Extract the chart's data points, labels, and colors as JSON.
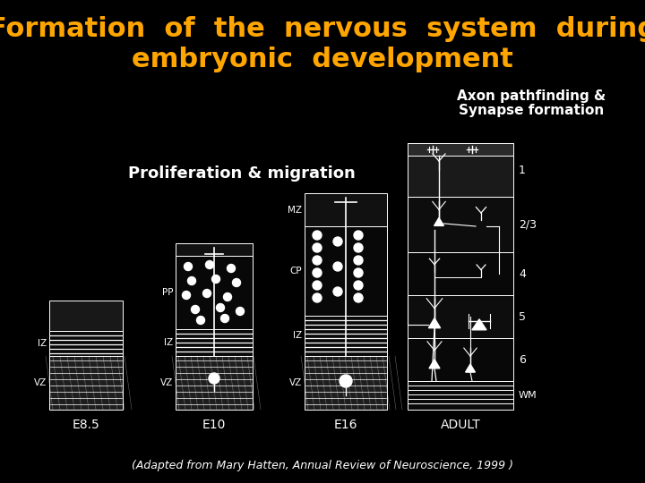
{
  "background_color": "#000000",
  "title_line1": "Formation  of  the  nervous  system  during",
  "title_line2": "embryonic  development",
  "title_color": "#FFA500",
  "title_fontsize": 22,
  "subtitle1": "Axon pathfinding &",
  "subtitle2": "Synapse formation",
  "subtitle_color": "#FFFFFF",
  "subtitle_fontsize": 11,
  "label_prolif": "Proliferation & migration",
  "label_prolif_color": "#FFFFFF",
  "label_prolif_fontsize": 13,
  "footer": "(Adapted from Mary Hatten, Annual Review of Neuroscience, 1999 )",
  "footer_color": "#FFFFFF",
  "footer_fontsize": 9,
  "stage_labels": [
    "E8.5",
    "E10",
    "E16",
    "ADULT"
  ],
  "stage_label_color": "#FFFFFF",
  "stage_label_fontsize": 10
}
